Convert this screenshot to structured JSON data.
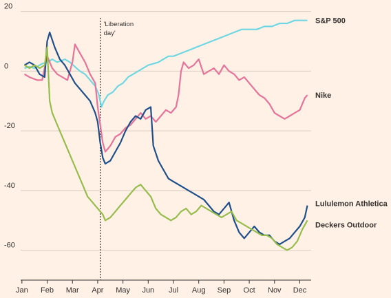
{
  "chart_data": {
    "type": "line",
    "title": "",
    "xlabel": "",
    "ylabel": "",
    "ylim": [
      -70,
      22
    ],
    "grid": true,
    "x_months": [
      "Jan",
      "Feb",
      "Mar",
      "Apr",
      "May",
      "Jun",
      "Jul",
      "Aug",
      "Sep",
      "Oct",
      "Nov",
      "Dec"
    ],
    "y_ticks": [
      20,
      0,
      -20,
      -40,
      -60
    ],
    "annotation": {
      "text_line1": "'Liberation",
      "text_line2": "day'",
      "x": 3.1
    },
    "series": [
      {
        "name": "S&P 500",
        "color": "#6fd7e3",
        "points": [
          [
            0.1,
            1
          ],
          [
            0.3,
            1.5
          ],
          [
            0.5,
            1
          ],
          [
            0.8,
            2.5
          ],
          [
            1.0,
            3
          ],
          [
            1.2,
            4
          ],
          [
            1.4,
            3
          ],
          [
            1.7,
            4
          ],
          [
            1.9,
            3
          ],
          [
            2.1,
            1.5
          ],
          [
            2.3,
            0
          ],
          [
            2.5,
            -1
          ],
          [
            2.7,
            -3
          ],
          [
            2.9,
            -5
          ],
          [
            3.05,
            -8
          ],
          [
            3.15,
            -12
          ],
          [
            3.25,
            -10
          ],
          [
            3.4,
            -8
          ],
          [
            3.6,
            -7
          ],
          [
            3.8,
            -5
          ],
          [
            4.0,
            -4
          ],
          [
            4.2,
            -2
          ],
          [
            4.4,
            -1
          ],
          [
            4.6,
            0
          ],
          [
            4.8,
            1
          ],
          [
            5.0,
            2
          ],
          [
            5.2,
            2.5
          ],
          [
            5.4,
            3
          ],
          [
            5.6,
            4
          ],
          [
            5.8,
            5
          ],
          [
            6.0,
            5
          ],
          [
            6.3,
            6
          ],
          [
            6.6,
            7
          ],
          [
            6.9,
            8
          ],
          [
            7.2,
            9
          ],
          [
            7.5,
            10
          ],
          [
            7.8,
            11
          ],
          [
            8.1,
            12
          ],
          [
            8.4,
            13
          ],
          [
            8.7,
            14
          ],
          [
            9.0,
            14
          ],
          [
            9.3,
            14
          ],
          [
            9.6,
            15
          ],
          [
            9.9,
            15
          ],
          [
            10.2,
            16
          ],
          [
            10.5,
            16
          ],
          [
            10.8,
            17
          ],
          [
            11.1,
            17
          ],
          [
            11.3,
            17
          ]
        ]
      },
      {
        "name": "Nike",
        "color": "#e6739a",
        "points": [
          [
            0.1,
            -1
          ],
          [
            0.3,
            -2
          ],
          [
            0.6,
            -3
          ],
          [
            0.8,
            -3
          ],
          [
            1.0,
            5
          ],
          [
            1.2,
            1
          ],
          [
            1.4,
            -1
          ],
          [
            1.6,
            -2
          ],
          [
            1.8,
            -3
          ],
          [
            2.0,
            3
          ],
          [
            2.1,
            9
          ],
          [
            2.3,
            6
          ],
          [
            2.5,
            3
          ],
          [
            2.7,
            -1
          ],
          [
            2.9,
            -4
          ],
          [
            3.0,
            -12
          ],
          [
            3.1,
            -18
          ],
          [
            3.2,
            -24
          ],
          [
            3.3,
            -27
          ],
          [
            3.5,
            -25
          ],
          [
            3.7,
            -22
          ],
          [
            3.9,
            -21
          ],
          [
            4.1,
            -19
          ],
          [
            4.3,
            -18
          ],
          [
            4.5,
            -16
          ],
          [
            4.7,
            -14
          ],
          [
            4.9,
            -16
          ],
          [
            5.1,
            -15
          ],
          [
            5.3,
            -17
          ],
          [
            5.5,
            -15
          ],
          [
            5.7,
            -13
          ],
          [
            5.9,
            -14
          ],
          [
            6.1,
            -12
          ],
          [
            6.2,
            -8
          ],
          [
            6.3,
            0
          ],
          [
            6.4,
            3
          ],
          [
            6.6,
            1
          ],
          [
            6.8,
            2
          ],
          [
            7.0,
            4
          ],
          [
            7.2,
            -1
          ],
          [
            7.4,
            0
          ],
          [
            7.6,
            1
          ],
          [
            7.8,
            -1
          ],
          [
            8.0,
            2
          ],
          [
            8.2,
            0
          ],
          [
            8.4,
            -1
          ],
          [
            8.6,
            -3
          ],
          [
            8.8,
            -2
          ],
          [
            9.0,
            -4
          ],
          [
            9.2,
            -6
          ],
          [
            9.4,
            -8
          ],
          [
            9.6,
            -9
          ],
          [
            9.8,
            -11
          ],
          [
            10.0,
            -14
          ],
          [
            10.2,
            -15
          ],
          [
            10.4,
            -16
          ],
          [
            10.6,
            -15
          ],
          [
            10.8,
            -14
          ],
          [
            11.0,
            -13
          ],
          [
            11.2,
            -9
          ],
          [
            11.3,
            -8
          ]
        ]
      },
      {
        "name": "Lululemon Athletica",
        "color": "#1e4f8c",
        "points": [
          [
            0.1,
            2
          ],
          [
            0.3,
            3
          ],
          [
            0.5,
            2
          ],
          [
            0.7,
            -1
          ],
          [
            0.9,
            -2
          ],
          [
            1.0,
            10
          ],
          [
            1.1,
            13
          ],
          [
            1.3,
            8
          ],
          [
            1.5,
            4
          ],
          [
            1.7,
            2
          ],
          [
            1.9,
            -1
          ],
          [
            2.1,
            -4
          ],
          [
            2.3,
            -6
          ],
          [
            2.5,
            -8
          ],
          [
            2.7,
            -10
          ],
          [
            2.9,
            -14
          ],
          [
            3.0,
            -17
          ],
          [
            3.1,
            -24
          ],
          [
            3.2,
            -29
          ],
          [
            3.3,
            -31
          ],
          [
            3.5,
            -30
          ],
          [
            3.7,
            -27
          ],
          [
            3.9,
            -24
          ],
          [
            4.1,
            -20
          ],
          [
            4.3,
            -17
          ],
          [
            4.5,
            -15
          ],
          [
            4.7,
            -16
          ],
          [
            4.9,
            -13
          ],
          [
            5.1,
            -12
          ],
          [
            5.2,
            -25
          ],
          [
            5.4,
            -30
          ],
          [
            5.6,
            -33
          ],
          [
            5.8,
            -36
          ],
          [
            6.0,
            -37
          ],
          [
            6.2,
            -38
          ],
          [
            6.4,
            -39
          ],
          [
            6.6,
            -40
          ],
          [
            6.8,
            -41
          ],
          [
            7.0,
            -42
          ],
          [
            7.2,
            -43
          ],
          [
            7.4,
            -45
          ],
          [
            7.6,
            -47
          ],
          [
            7.8,
            -48
          ],
          [
            8.0,
            -46
          ],
          [
            8.2,
            -44
          ],
          [
            8.4,
            -50
          ],
          [
            8.6,
            -54
          ],
          [
            8.8,
            -56
          ],
          [
            9.0,
            -54
          ],
          [
            9.2,
            -52
          ],
          [
            9.4,
            -54
          ],
          [
            9.6,
            -55
          ],
          [
            9.8,
            -55
          ],
          [
            10.0,
            -57
          ],
          [
            10.2,
            -58
          ],
          [
            10.4,
            -57
          ],
          [
            10.6,
            -56
          ],
          [
            10.8,
            -54
          ],
          [
            11.0,
            -52
          ],
          [
            11.2,
            -49
          ],
          [
            11.3,
            -45
          ]
        ]
      },
      {
        "name": "Deckers Outdoor",
        "color": "#96bc4b",
        "points": [
          [
            0.1,
            2
          ],
          [
            0.3,
            1
          ],
          [
            0.5,
            2
          ],
          [
            0.7,
            1
          ],
          [
            0.9,
            2
          ],
          [
            1.0,
            8
          ],
          [
            1.1,
            -10
          ],
          [
            1.2,
            -14
          ],
          [
            1.4,
            -18
          ],
          [
            1.6,
            -22
          ],
          [
            1.8,
            -26
          ],
          [
            2.0,
            -30
          ],
          [
            2.2,
            -34
          ],
          [
            2.4,
            -38
          ],
          [
            2.6,
            -42
          ],
          [
            2.8,
            -44
          ],
          [
            3.0,
            -46
          ],
          [
            3.1,
            -47
          ],
          [
            3.2,
            -48
          ],
          [
            3.3,
            -50
          ],
          [
            3.5,
            -49
          ],
          [
            3.7,
            -47
          ],
          [
            3.9,
            -45
          ],
          [
            4.1,
            -43
          ],
          [
            4.3,
            -41
          ],
          [
            4.5,
            -39
          ],
          [
            4.7,
            -38
          ],
          [
            4.9,
            -40
          ],
          [
            5.1,
            -42
          ],
          [
            5.3,
            -46
          ],
          [
            5.5,
            -48
          ],
          [
            5.7,
            -49
          ],
          [
            5.9,
            -50
          ],
          [
            6.1,
            -49
          ],
          [
            6.3,
            -47
          ],
          [
            6.5,
            -46
          ],
          [
            6.7,
            -48
          ],
          [
            6.9,
            -47
          ],
          [
            7.1,
            -45
          ],
          [
            7.3,
            -46
          ],
          [
            7.5,
            -47
          ],
          [
            7.7,
            -48
          ],
          [
            7.9,
            -49
          ],
          [
            8.1,
            -48
          ],
          [
            8.3,
            -47
          ],
          [
            8.5,
            -50
          ],
          [
            8.7,
            -51
          ],
          [
            8.9,
            -52
          ],
          [
            9.1,
            -53
          ],
          [
            9.3,
            -54
          ],
          [
            9.5,
            -55
          ],
          [
            9.7,
            -55
          ],
          [
            9.9,
            -56
          ],
          [
            10.1,
            -58
          ],
          [
            10.3,
            -59
          ],
          [
            10.5,
            -60
          ],
          [
            10.7,
            -59
          ],
          [
            10.9,
            -57
          ],
          [
            11.1,
            -53
          ],
          [
            11.3,
            -50
          ]
        ]
      }
    ]
  }
}
